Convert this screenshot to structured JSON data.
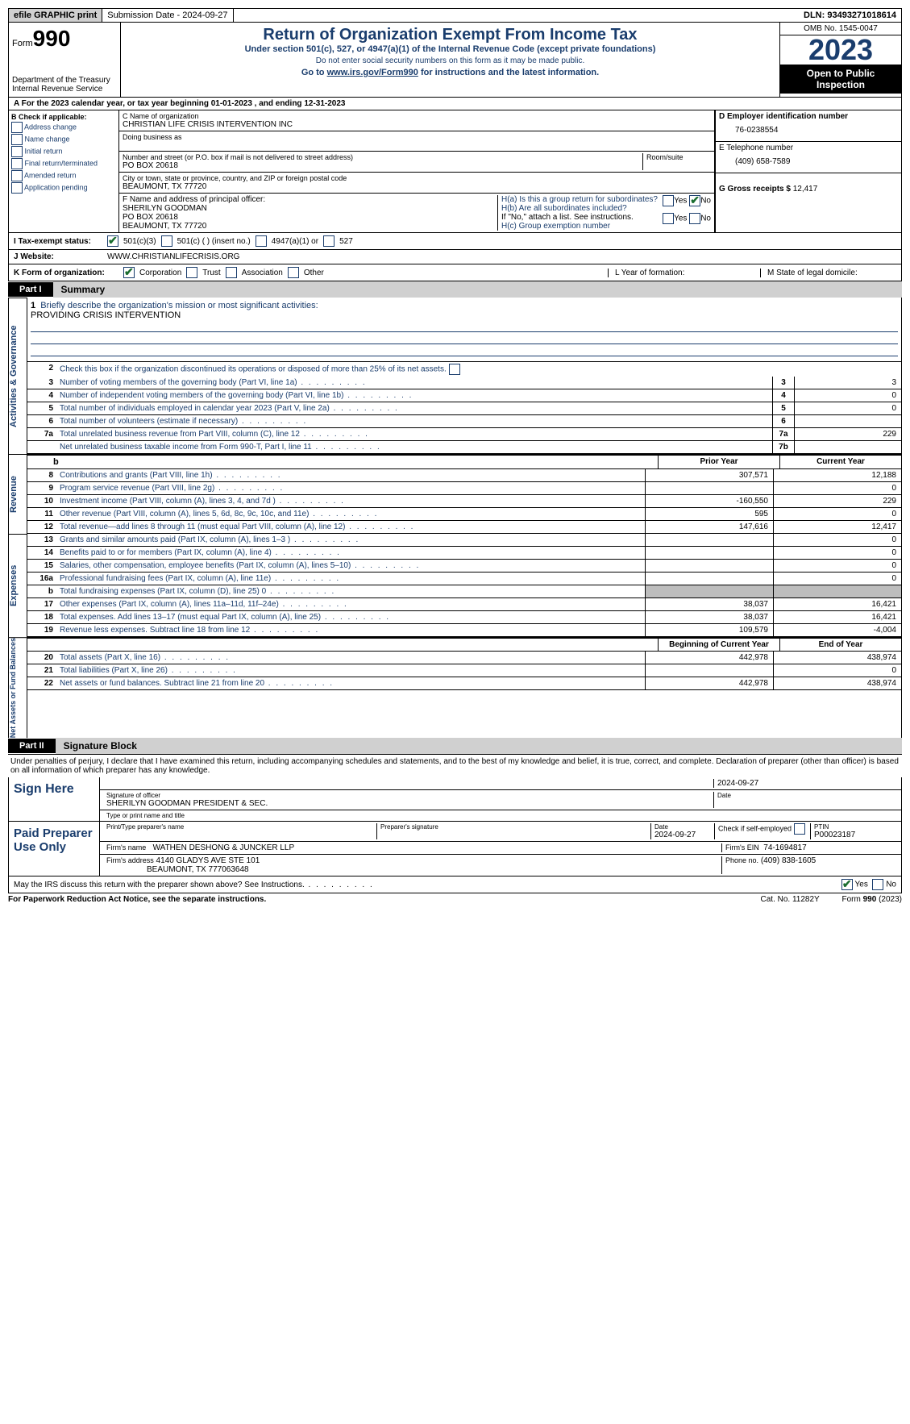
{
  "topbar": {
    "efile": "efile GRAPHIC print",
    "submission": "Submission Date - 2024-09-27",
    "dln": "DLN: 93493271018614"
  },
  "header": {
    "form_prefix": "Form",
    "form_no": "990",
    "dept": "Department of the Treasury Internal Revenue Service",
    "title": "Return of Organization Exempt From Income Tax",
    "subtitle": "Under section 501(c), 527, or 4947(a)(1) of the Internal Revenue Code (except private foundations)",
    "note1": "Do not enter social security numbers on this form as it may be made public.",
    "note2_pre": "Go to ",
    "note2_link": "www.irs.gov/Form990",
    "note2_post": " for instructions and the latest information.",
    "omb": "OMB No. 1545-0047",
    "year": "2023",
    "open": "Open to Public Inspection"
  },
  "rowA": "A  For the 2023 calendar year, or tax year beginning 01-01-2023   , and ending 12-31-2023",
  "boxB": {
    "title": "B Check if applicable:",
    "opts": [
      "Address change",
      "Name change",
      "Initial return",
      "Final return/terminated",
      "Amended return",
      "Application pending"
    ]
  },
  "boxC": {
    "name_label": "C Name of organization",
    "name": "CHRISTIAN LIFE CRISIS INTERVENTION INC",
    "dba_label": "Doing business as",
    "street_label": "Number and street (or P.O. box if mail is not delivered to street address)",
    "street": "PO BOX 20618",
    "room_label": "Room/suite",
    "city_label": "City or town, state or province, country, and ZIP or foreign postal code",
    "city": "BEAUMONT, TX  77720"
  },
  "boxD": {
    "label": "D Employer identification number",
    "value": "76-0238554"
  },
  "boxE": {
    "label": "E Telephone number",
    "value": "(409) 658-7589"
  },
  "boxF": {
    "label": "F  Name and address of principal officer:",
    "name": "SHERILYN GOODMAN",
    "addr1": "PO BOX 20618",
    "addr2": "BEAUMONT, TX  77720"
  },
  "boxG": {
    "label": "G Gross receipts $",
    "value": "12,417"
  },
  "boxH": {
    "a": "H(a)  Is this a group return for subordinates?",
    "b": "H(b)  Are all subordinates included?",
    "note": "If \"No,\" attach a list. See instructions.",
    "c": "H(c)  Group exemption number"
  },
  "rowI": {
    "label": "I   Tax-exempt status:",
    "o1": "501(c)(3)",
    "o2": "501(c) (  ) (insert no.)",
    "o3": "4947(a)(1) or",
    "o4": "527"
  },
  "rowJ": {
    "label": "J   Website:",
    "value": "WWW.CHRISTIANLIFECRISIS.ORG"
  },
  "rowK": {
    "label": "K Form of organization:",
    "o1": "Corporation",
    "o2": "Trust",
    "o3": "Association",
    "o4": "Other",
    "L": "L Year of formation:",
    "M": "M State of legal domicile:"
  },
  "part1": {
    "tag": "Part I",
    "title": "Summary"
  },
  "summary": {
    "line1_label": "Briefly describe the organization's mission or most significant activities:",
    "line1_value": "PROVIDING CRISIS INTERVENTION",
    "line2": "Check this box       if the organization discontinued its operations or disposed of more than 25% of its net assets.",
    "lines_gov": [
      {
        "n": "3",
        "d": "Number of voting members of the governing body (Part VI, line 1a)",
        "box": "3",
        "v": "3"
      },
      {
        "n": "4",
        "d": "Number of independent voting members of the governing body (Part VI, line 1b)",
        "box": "4",
        "v": "0"
      },
      {
        "n": "5",
        "d": "Total number of individuals employed in calendar year 2023 (Part V, line 2a)",
        "box": "5",
        "v": "0"
      },
      {
        "n": "6",
        "d": "Total number of volunteers (estimate if necessary)",
        "box": "6",
        "v": ""
      },
      {
        "n": "7a",
        "d": "Total unrelated business revenue from Part VIII, column (C), line 12",
        "box": "7a",
        "v": "229"
      },
      {
        "n": "",
        "d": "Net unrelated business taxable income from Form 990-T, Part I, line 11",
        "box": "7b",
        "v": ""
      }
    ],
    "hdr_prior": "Prior Year",
    "hdr_current": "Current Year",
    "lines_rev": [
      {
        "n": "8",
        "d": "Contributions and grants (Part VIII, line 1h)",
        "p": "307,571",
        "c": "12,188"
      },
      {
        "n": "9",
        "d": "Program service revenue (Part VIII, line 2g)",
        "p": "",
        "c": "0"
      },
      {
        "n": "10",
        "d": "Investment income (Part VIII, column (A), lines 3, 4, and 7d )",
        "p": "-160,550",
        "c": "229"
      },
      {
        "n": "11",
        "d": "Other revenue (Part VIII, column (A), lines 5, 6d, 8c, 9c, 10c, and 11e)",
        "p": "595",
        "c": "0"
      },
      {
        "n": "12",
        "d": "Total revenue—add lines 8 through 11 (must equal Part VIII, column (A), line 12)",
        "p": "147,616",
        "c": "12,417"
      }
    ],
    "lines_exp": [
      {
        "n": "13",
        "d": "Grants and similar amounts paid (Part IX, column (A), lines 1–3 )",
        "p": "",
        "c": "0"
      },
      {
        "n": "14",
        "d": "Benefits paid to or for members (Part IX, column (A), line 4)",
        "p": "",
        "c": "0"
      },
      {
        "n": "15",
        "d": "Salaries, other compensation, employee benefits (Part IX, column (A), lines 5–10)",
        "p": "",
        "c": "0"
      },
      {
        "n": "16a",
        "d": "Professional fundraising fees (Part IX, column (A), line 11e)",
        "p": "",
        "c": "0"
      },
      {
        "n": "b",
        "d": "Total fundraising expenses (Part IX, column (D), line 25) 0",
        "p": "GREY",
        "c": "GREY"
      },
      {
        "n": "17",
        "d": "Other expenses (Part IX, column (A), lines 11a–11d, 11f–24e)",
        "p": "38,037",
        "c": "16,421"
      },
      {
        "n": "18",
        "d": "Total expenses. Add lines 13–17 (must equal Part IX, column (A), line 25)",
        "p": "38,037",
        "c": "16,421"
      },
      {
        "n": "19",
        "d": "Revenue less expenses. Subtract line 18 from line 12",
        "p": "109,579",
        "c": "-4,004"
      }
    ],
    "hdr_begin": "Beginning of Current Year",
    "hdr_end": "End of Year",
    "lines_net": [
      {
        "n": "20",
        "d": "Total assets (Part X, line 16)",
        "p": "442,978",
        "c": "438,974"
      },
      {
        "n": "21",
        "d": "Total liabilities (Part X, line 26)",
        "p": "",
        "c": "0"
      },
      {
        "n": "22",
        "d": "Net assets or fund balances. Subtract line 21 from line 20",
        "p": "442,978",
        "c": "438,974"
      }
    ],
    "vlabels": {
      "gov": "Activities & Governance",
      "rev": "Revenue",
      "exp": "Expenses",
      "net": "Net Assets or Fund Balances"
    }
  },
  "part2": {
    "tag": "Part II",
    "title": "Signature Block"
  },
  "perjury": "Under penalties of perjury, I declare that I have examined this return, including accompanying schedules and statements, and to the best of my knowledge and belief, it is true, correct, and complete. Declaration of preparer (other than officer) is based on all information of which preparer has any knowledge.",
  "sign": {
    "here": "Sign Here",
    "date": "2024-09-27",
    "sig_label": "Signature of officer",
    "officer": "SHERILYN GOODMAN  PRESIDENT & SEC.",
    "type_label": "Type or print name and title",
    "date_label": "Date"
  },
  "preparer": {
    "label": "Paid Preparer Use Only",
    "name_label": "Print/Type preparer's name",
    "sig_label": "Preparer's signature",
    "date_label": "Date",
    "date": "2024-09-27",
    "self_label": "Check       if self-employed",
    "ptin_label": "PTIN",
    "ptin": "P00023187",
    "firm_name_label": "Firm's name",
    "firm_name": "WATHEN DESHONG & JUNCKER LLP",
    "firm_ein_label": "Firm's EIN",
    "firm_ein": "74-1694817",
    "firm_addr_label": "Firm's address",
    "firm_addr1": "4140 GLADYS AVE STE 101",
    "firm_addr2": "BEAUMONT, TX  777063648",
    "phone_label": "Phone no.",
    "phone": "(409) 838-1605"
  },
  "discuss": "May the IRS discuss this return with the preparer shown above? See Instructions.",
  "footer": {
    "left": "For Paperwork Reduction Act Notice, see the separate instructions.",
    "mid": "Cat. No. 11282Y",
    "right_pre": "Form ",
    "right_form": "990",
    "right_post": " (2023)"
  },
  "yesno": {
    "yes": "Yes",
    "no": "No"
  }
}
